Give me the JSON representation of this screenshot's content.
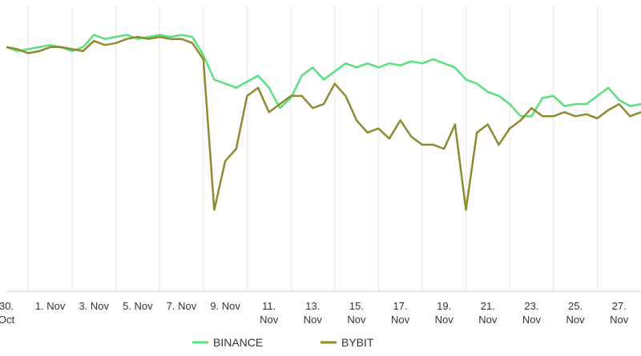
{
  "chart_data": {
    "type": "line",
    "title": "",
    "xlabel": "",
    "ylabel": "",
    "grid": true,
    "legend_position": "bottom-center",
    "x_ticks": [
      {
        "day": 0,
        "lines": [
          "30.",
          "Oct"
        ]
      },
      {
        "day": 2,
        "lines": [
          "1. Nov"
        ]
      },
      {
        "day": 4,
        "lines": [
          "3. Nov"
        ]
      },
      {
        "day": 6,
        "lines": [
          "5. Nov"
        ]
      },
      {
        "day": 8,
        "lines": [
          "7. Nov"
        ]
      },
      {
        "day": 10,
        "lines": [
          "9. Nov"
        ]
      },
      {
        "day": 12,
        "lines": [
          "11.",
          "Nov"
        ]
      },
      {
        "day": 14,
        "lines": [
          "13.",
          "Nov"
        ]
      },
      {
        "day": 16,
        "lines": [
          "15.",
          "Nov"
        ]
      },
      {
        "day": 18,
        "lines": [
          "17.",
          "Nov"
        ]
      },
      {
        "day": 20,
        "lines": [
          "19.",
          "Nov"
        ]
      },
      {
        "day": 22,
        "lines": [
          "21.",
          "Nov"
        ]
      },
      {
        "day": 24,
        "lines": [
          "23.",
          "Nov"
        ]
      },
      {
        "day": 26,
        "lines": [
          "25.",
          "Nov"
        ]
      },
      {
        "day": 28,
        "lines": [
          "27.",
          "Nov"
        ]
      }
    ],
    "x": [
      0.0,
      0.5,
      1.0,
      1.5,
      2.0,
      2.5,
      3.0,
      3.5,
      4.0,
      4.5,
      5.0,
      5.5,
      6.0,
      6.5,
      7.0,
      7.5,
      8.0,
      8.5,
      9.0,
      9.5,
      10.0,
      10.5,
      11.0,
      11.5,
      12.0,
      12.5,
      13.0,
      13.5,
      14.0,
      14.5,
      15.0,
      15.5,
      16.0,
      16.5,
      17.0,
      17.5,
      18.0,
      18.5,
      19.0,
      19.5,
      20.0,
      20.5,
      21.0,
      21.5,
      22.0,
      22.5,
      23.0,
      23.5,
      24.0,
      24.5,
      25.0,
      25.5,
      26.0,
      26.5,
      27.0,
      27.5,
      28.0,
      28.5,
      29.0
    ],
    "ylim": [
      0,
      7
    ],
    "series": [
      {
        "name": "BINANCE",
        "color": "#5ae07c",
        "values": [
          6.0,
          5.9,
          5.95,
          6.0,
          6.05,
          6.0,
          5.9,
          6.0,
          6.3,
          6.2,
          6.25,
          6.3,
          6.2,
          6.25,
          6.3,
          6.25,
          6.3,
          6.25,
          5.8,
          5.2,
          5.1,
          5.0,
          5.15,
          5.3,
          5.0,
          4.5,
          4.75,
          5.3,
          5.5,
          5.2,
          5.4,
          5.6,
          5.5,
          5.6,
          5.5,
          5.6,
          5.55,
          5.65,
          5.6,
          5.7,
          5.6,
          5.5,
          5.2,
          5.1,
          4.9,
          4.8,
          4.6,
          4.3,
          4.3,
          4.75,
          4.8,
          4.55,
          4.6,
          4.6,
          4.8,
          5.0,
          4.7,
          4.55,
          4.6
        ]
      },
      {
        "name": "BYBIT",
        "color": "#8f8a31",
        "values": [
          6.0,
          5.95,
          5.85,
          5.9,
          6.0,
          6.0,
          5.95,
          5.9,
          6.15,
          6.05,
          6.1,
          6.2,
          6.25,
          6.2,
          6.25,
          6.2,
          6.2,
          6.1,
          5.7,
          2.0,
          3.2,
          3.5,
          4.8,
          5.0,
          4.4,
          4.6,
          4.8,
          4.8,
          4.5,
          4.6,
          5.1,
          4.8,
          4.2,
          3.9,
          4.0,
          3.75,
          4.2,
          3.8,
          3.6,
          3.6,
          3.5,
          4.1,
          2.0,
          3.9,
          4.1,
          3.6,
          4.0,
          4.2,
          4.5,
          4.3,
          4.3,
          4.4,
          4.3,
          4.35,
          4.25,
          4.45,
          4.6,
          4.3,
          4.4
        ]
      }
    ]
  }
}
